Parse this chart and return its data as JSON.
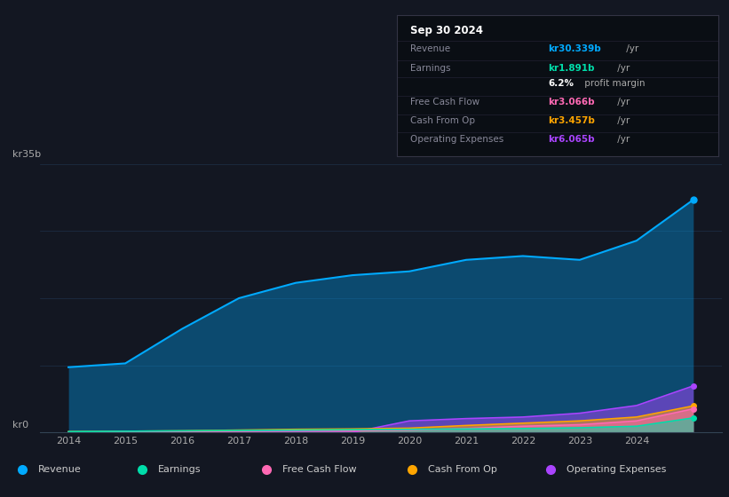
{
  "bg_color": "#131722",
  "chart_bg": "#131722",
  "grid_color": "#1e2a3a",
  "title_date": "Sep 30 2024",
  "ylabel_top": "kr35b",
  "ylabel_bottom": "kr0",
  "years": [
    2014,
    2015,
    2016,
    2017,
    2018,
    2019,
    2020,
    2021,
    2022,
    2023,
    2024,
    2025
  ],
  "revenue": [
    8.5,
    9.0,
    13.5,
    17.5,
    19.5,
    20.5,
    21.0,
    22.5,
    23.0,
    22.5,
    25.0,
    30.339
  ],
  "earnings": [
    0.1,
    0.15,
    0.2,
    0.25,
    0.3,
    0.35,
    0.4,
    0.45,
    0.5,
    0.6,
    0.8,
    1.891
  ],
  "free_cash_flow": [
    0.05,
    0.08,
    0.1,
    0.15,
    0.2,
    0.2,
    0.3,
    0.5,
    0.8,
    1.0,
    1.5,
    3.066
  ],
  "cash_from_op": [
    0.1,
    0.15,
    0.2,
    0.3,
    0.4,
    0.45,
    0.55,
    0.9,
    1.2,
    1.5,
    2.0,
    3.457
  ],
  "operating_expenses": [
    0.0,
    0.0,
    0.0,
    0.0,
    0.0,
    0.0,
    1.5,
    1.8,
    2.0,
    2.5,
    3.5,
    6.065
  ],
  "revenue_color": "#00aaff",
  "earnings_color": "#00ddaa",
  "free_cash_flow_color": "#ff69b4",
  "cash_from_op_color": "#ffa500",
  "operating_expenses_color": "#aa44ff",
  "ylim": [
    0,
    35
  ],
  "xticks": [
    2014,
    2015,
    2016,
    2017,
    2018,
    2019,
    2020,
    2021,
    2022,
    2023,
    2024
  ],
  "legend_labels": [
    "Revenue",
    "Earnings",
    "Free Cash Flow",
    "Cash From Op",
    "Operating Expenses"
  ]
}
